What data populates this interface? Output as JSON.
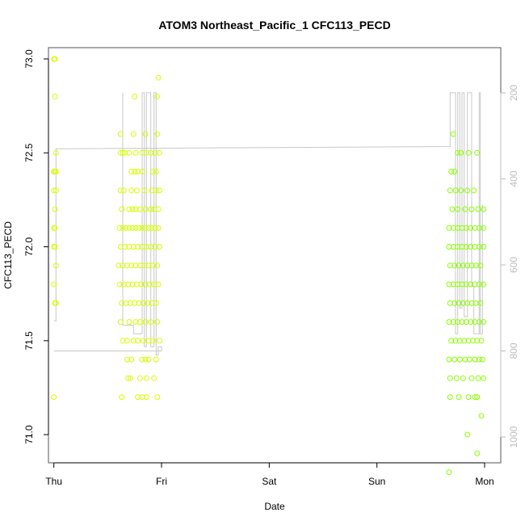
{
  "chart_data": {
    "type": "scatter",
    "title": "ATOM3 Northeast_Pacific_1 CFC113_PECD",
    "xlabel": "Date",
    "ylabel": "CFC113_PECD",
    "x_ticks": [
      "Thu",
      "Fri",
      "Sat",
      "Sun",
      "Mon"
    ],
    "y_ticks": [
      "71.0",
      "71.5",
      "72.0",
      "72.5",
      "73.0"
    ],
    "y_right_ticks": [
      "200",
      "400",
      "600",
      "800",
      "1000"
    ],
    "xlim": [
      -0.05,
      4.15
    ],
    "ylim": [
      70.85,
      73.06
    ],
    "y_right_lim": [
      1060,
      95
    ],
    "colors": {
      "points_early": "#d4ff00",
      "points_late": "#8aff00",
      "altitude_line": "#c8c8c8"
    },
    "points": [
      [
        0.0,
        73.0
      ],
      [
        0.01,
        73.0
      ],
      [
        0.01,
        72.8
      ],
      [
        0.02,
        72.5
      ],
      [
        0.0,
        72.4
      ],
      [
        0.01,
        72.4
      ],
      [
        0.02,
        72.4
      ],
      [
        0.0,
        72.3
      ],
      [
        0.02,
        72.3
      ],
      [
        0.01,
        72.2
      ],
      [
        0.0,
        72.1
      ],
      [
        0.01,
        72.1
      ],
      [
        0.0,
        72.0
      ],
      [
        0.01,
        72.0
      ],
      [
        0.02,
        71.9
      ],
      [
        0.0,
        71.8
      ],
      [
        0.01,
        71.7
      ],
      [
        0.02,
        71.7
      ],
      [
        0.0,
        71.2
      ],
      [
        0.62,
        72.5
      ],
      [
        0.64,
        72.5
      ],
      [
        0.66,
        72.5
      ],
      [
        0.7,
        72.5
      ],
      [
        0.76,
        72.5
      ],
      [
        0.82,
        72.5
      ],
      [
        0.86,
        72.5
      ],
      [
        0.9,
        72.5
      ],
      [
        0.94,
        72.5
      ],
      [
        0.98,
        72.5
      ],
      [
        0.62,
        72.6
      ],
      [
        0.74,
        72.6
      ],
      [
        0.85,
        72.6
      ],
      [
        0.96,
        72.6
      ],
      [
        0.75,
        72.8
      ],
      [
        0.96,
        72.8
      ],
      [
        0.97,
        72.9
      ],
      [
        0.72,
        72.4
      ],
      [
        0.75,
        72.4
      ],
      [
        0.78,
        72.4
      ],
      [
        0.82,
        72.4
      ],
      [
        0.92,
        72.4
      ],
      [
        0.95,
        72.4
      ],
      [
        0.62,
        72.3
      ],
      [
        0.65,
        72.3
      ],
      [
        0.72,
        72.3
      ],
      [
        0.77,
        72.3
      ],
      [
        0.84,
        72.3
      ],
      [
        0.91,
        72.3
      ],
      [
        0.95,
        72.3
      ],
      [
        0.98,
        72.3
      ],
      [
        0.63,
        72.2
      ],
      [
        0.7,
        72.2
      ],
      [
        0.73,
        72.2
      ],
      [
        0.76,
        72.2
      ],
      [
        0.8,
        72.2
      ],
      [
        0.85,
        72.2
      ],
      [
        0.9,
        72.2
      ],
      [
        0.93,
        72.2
      ],
      [
        0.97,
        72.2
      ],
      [
        0.61,
        72.1
      ],
      [
        0.64,
        72.1
      ],
      [
        0.67,
        72.1
      ],
      [
        0.7,
        72.1
      ],
      [
        0.73,
        72.1
      ],
      [
        0.76,
        72.1
      ],
      [
        0.79,
        72.1
      ],
      [
        0.82,
        72.1
      ],
      [
        0.85,
        72.1
      ],
      [
        0.88,
        72.1
      ],
      [
        0.91,
        72.1
      ],
      [
        0.94,
        72.1
      ],
      [
        0.97,
        72.1
      ],
      [
        0.62,
        72.0
      ],
      [
        0.66,
        72.0
      ],
      [
        0.7,
        72.0
      ],
      [
        0.74,
        72.0
      ],
      [
        0.78,
        72.0
      ],
      [
        0.82,
        72.0
      ],
      [
        0.86,
        72.0
      ],
      [
        0.9,
        72.0
      ],
      [
        0.94,
        72.0
      ],
      [
        0.98,
        72.0
      ],
      [
        0.6,
        71.9
      ],
      [
        0.64,
        71.9
      ],
      [
        0.68,
        71.9
      ],
      [
        0.72,
        71.9
      ],
      [
        0.76,
        71.9
      ],
      [
        0.8,
        71.9
      ],
      [
        0.84,
        71.9
      ],
      [
        0.88,
        71.9
      ],
      [
        0.92,
        71.9
      ],
      [
        0.96,
        71.9
      ],
      [
        0.61,
        71.8
      ],
      [
        0.65,
        71.8
      ],
      [
        0.69,
        71.8
      ],
      [
        0.73,
        71.8
      ],
      [
        0.77,
        71.8
      ],
      [
        0.81,
        71.8
      ],
      [
        0.85,
        71.8
      ],
      [
        0.89,
        71.8
      ],
      [
        0.93,
        71.8
      ],
      [
        0.97,
        71.8
      ],
      [
        0.63,
        71.7
      ],
      [
        0.67,
        71.7
      ],
      [
        0.71,
        71.7
      ],
      [
        0.75,
        71.7
      ],
      [
        0.79,
        71.7
      ],
      [
        0.83,
        71.7
      ],
      [
        0.87,
        71.7
      ],
      [
        0.91,
        71.7
      ],
      [
        0.95,
        71.7
      ],
      [
        0.62,
        71.6
      ],
      [
        0.7,
        71.6
      ],
      [
        0.76,
        71.6
      ],
      [
        0.8,
        71.6
      ],
      [
        0.85,
        71.6
      ],
      [
        0.9,
        71.6
      ],
      [
        0.96,
        71.6
      ],
      [
        0.64,
        71.5
      ],
      [
        0.68,
        71.5
      ],
      [
        0.74,
        71.5
      ],
      [
        0.78,
        71.5
      ],
      [
        0.83,
        71.5
      ],
      [
        0.88,
        71.5
      ],
      [
        0.92,
        71.5
      ],
      [
        0.98,
        71.5
      ],
      [
        0.68,
        71.4
      ],
      [
        0.72,
        71.4
      ],
      [
        0.82,
        71.4
      ],
      [
        0.85,
        71.4
      ],
      [
        0.88,
        71.4
      ],
      [
        0.95,
        71.4
      ],
      [
        0.69,
        71.3
      ],
      [
        0.71,
        71.3
      ],
      [
        0.8,
        71.3
      ],
      [
        0.86,
        71.3
      ],
      [
        0.93,
        71.3
      ],
      [
        0.63,
        71.2
      ],
      [
        0.78,
        71.2
      ],
      [
        0.82,
        71.2
      ],
      [
        0.86,
        71.2
      ],
      [
        0.96,
        71.2
      ],
      [
        3.69,
        72.4
      ],
      [
        3.72,
        72.4
      ],
      [
        3.71,
        72.6
      ],
      [
        3.75,
        72.5
      ],
      [
        3.78,
        72.5
      ],
      [
        3.85,
        72.5
      ],
      [
        3.93,
        72.5
      ],
      [
        3.68,
        72.3
      ],
      [
        3.73,
        72.3
      ],
      [
        3.78,
        72.3
      ],
      [
        3.84,
        72.3
      ],
      [
        3.9,
        72.3
      ],
      [
        3.7,
        72.2
      ],
      [
        3.75,
        72.2
      ],
      [
        3.82,
        72.2
      ],
      [
        3.88,
        72.2
      ],
      [
        3.94,
        72.2
      ],
      [
        3.99,
        72.2
      ],
      [
        3.67,
        72.1
      ],
      [
        3.71,
        72.1
      ],
      [
        3.75,
        72.1
      ],
      [
        3.79,
        72.1
      ],
      [
        3.83,
        72.1
      ],
      [
        3.87,
        72.1
      ],
      [
        3.91,
        72.1
      ],
      [
        3.95,
        72.1
      ],
      [
        3.99,
        72.1
      ],
      [
        3.67,
        72.0
      ],
      [
        3.71,
        72.0
      ],
      [
        3.75,
        72.0
      ],
      [
        3.79,
        72.0
      ],
      [
        3.83,
        72.0
      ],
      [
        3.87,
        72.0
      ],
      [
        3.91,
        72.0
      ],
      [
        3.95,
        72.0
      ],
      [
        3.99,
        72.0
      ],
      [
        3.68,
        71.9
      ],
      [
        3.72,
        71.9
      ],
      [
        3.76,
        71.9
      ],
      [
        3.8,
        71.9
      ],
      [
        3.84,
        71.9
      ],
      [
        3.88,
        71.9
      ],
      [
        3.92,
        71.9
      ],
      [
        3.96,
        71.9
      ],
      [
        3.67,
        71.8
      ],
      [
        3.71,
        71.8
      ],
      [
        3.75,
        71.8
      ],
      [
        3.79,
        71.8
      ],
      [
        3.83,
        71.8
      ],
      [
        3.87,
        71.8
      ],
      [
        3.91,
        71.8
      ],
      [
        3.95,
        71.8
      ],
      [
        3.99,
        71.8
      ],
      [
        3.68,
        71.7
      ],
      [
        3.72,
        71.7
      ],
      [
        3.76,
        71.7
      ],
      [
        3.8,
        71.7
      ],
      [
        3.84,
        71.7
      ],
      [
        3.88,
        71.7
      ],
      [
        3.92,
        71.7
      ],
      [
        3.96,
        71.7
      ],
      [
        3.67,
        71.6
      ],
      [
        3.71,
        71.6
      ],
      [
        3.75,
        71.6
      ],
      [
        3.79,
        71.6
      ],
      [
        3.83,
        71.6
      ],
      [
        3.87,
        71.6
      ],
      [
        3.91,
        71.6
      ],
      [
        3.95,
        71.6
      ],
      [
        3.99,
        71.6
      ],
      [
        3.69,
        71.5
      ],
      [
        3.73,
        71.5
      ],
      [
        3.77,
        71.5
      ],
      [
        3.81,
        71.5
      ],
      [
        3.85,
        71.5
      ],
      [
        3.89,
        71.5
      ],
      [
        3.93,
        71.5
      ],
      [
        3.97,
        71.5
      ],
      [
        3.67,
        71.4
      ],
      [
        3.72,
        71.4
      ],
      [
        3.77,
        71.4
      ],
      [
        3.82,
        71.4
      ],
      [
        3.86,
        71.4
      ],
      [
        3.91,
        71.4
      ],
      [
        3.95,
        71.4
      ],
      [
        3.98,
        71.4
      ],
      [
        3.68,
        71.3
      ],
      [
        3.74,
        71.3
      ],
      [
        3.8,
        71.3
      ],
      [
        3.88,
        71.3
      ],
      [
        3.94,
        71.3
      ],
      [
        3.99,
        71.3
      ],
      [
        3.68,
        71.2
      ],
      [
        3.76,
        71.2
      ],
      [
        3.85,
        71.2
      ],
      [
        3.91,
        71.2
      ],
      [
        3.93,
        71.2
      ],
      [
        3.97,
        71.1
      ],
      [
        3.84,
        71.0
      ],
      [
        3.93,
        70.9
      ],
      [
        3.67,
        70.8
      ]
    ],
    "altitude_profile": [
      [
        0.0,
        730
      ],
      [
        0.02,
        730
      ],
      [
        0.02,
        330
      ],
      [
        3.68,
        325
      ],
      [
        3.68,
        200
      ],
      [
        3.73,
        200
      ],
      [
        3.73,
        760
      ],
      [
        3.75,
        760
      ],
      [
        3.75,
        200
      ],
      [
        3.77,
        200
      ],
      [
        3.77,
        700
      ],
      [
        3.79,
        700
      ],
      [
        3.79,
        200
      ],
      [
        3.81,
        200
      ],
      [
        3.81,
        720
      ],
      [
        3.84,
        720
      ],
      [
        3.84,
        200
      ],
      [
        3.88,
        200
      ],
      [
        3.88,
        650
      ],
      [
        3.9,
        650
      ],
      [
        3.9,
        760
      ],
      [
        3.95,
        760
      ],
      [
        3.95,
        200
      ],
      [
        3.96,
        200
      ],
      [
        3.96,
        760
      ],
      [
        3.98,
        760
      ],
      [
        3.98,
        460
      ]
    ],
    "altitude_profile_fri": [
      [
        0.0,
        800
      ],
      [
        1.0,
        800
      ],
      [
        1.0,
        790
      ],
      [
        0.97,
        790
      ],
      [
        0.97,
        810
      ],
      [
        0.95,
        810
      ],
      [
        0.95,
        200
      ],
      [
        0.93,
        200
      ],
      [
        0.93,
        790
      ],
      [
        0.9,
        790
      ],
      [
        0.9,
        200
      ],
      [
        0.86,
        200
      ],
      [
        0.86,
        790
      ],
      [
        0.84,
        790
      ],
      [
        0.84,
        200
      ],
      [
        0.82,
        200
      ],
      [
        0.82,
        760
      ],
      [
        0.78,
        760
      ],
      [
        0.78,
        760
      ],
      [
        0.74,
        760
      ],
      [
        0.74,
        740
      ],
      [
        0.64,
        740
      ],
      [
        0.64,
        200
      ]
    ]
  }
}
